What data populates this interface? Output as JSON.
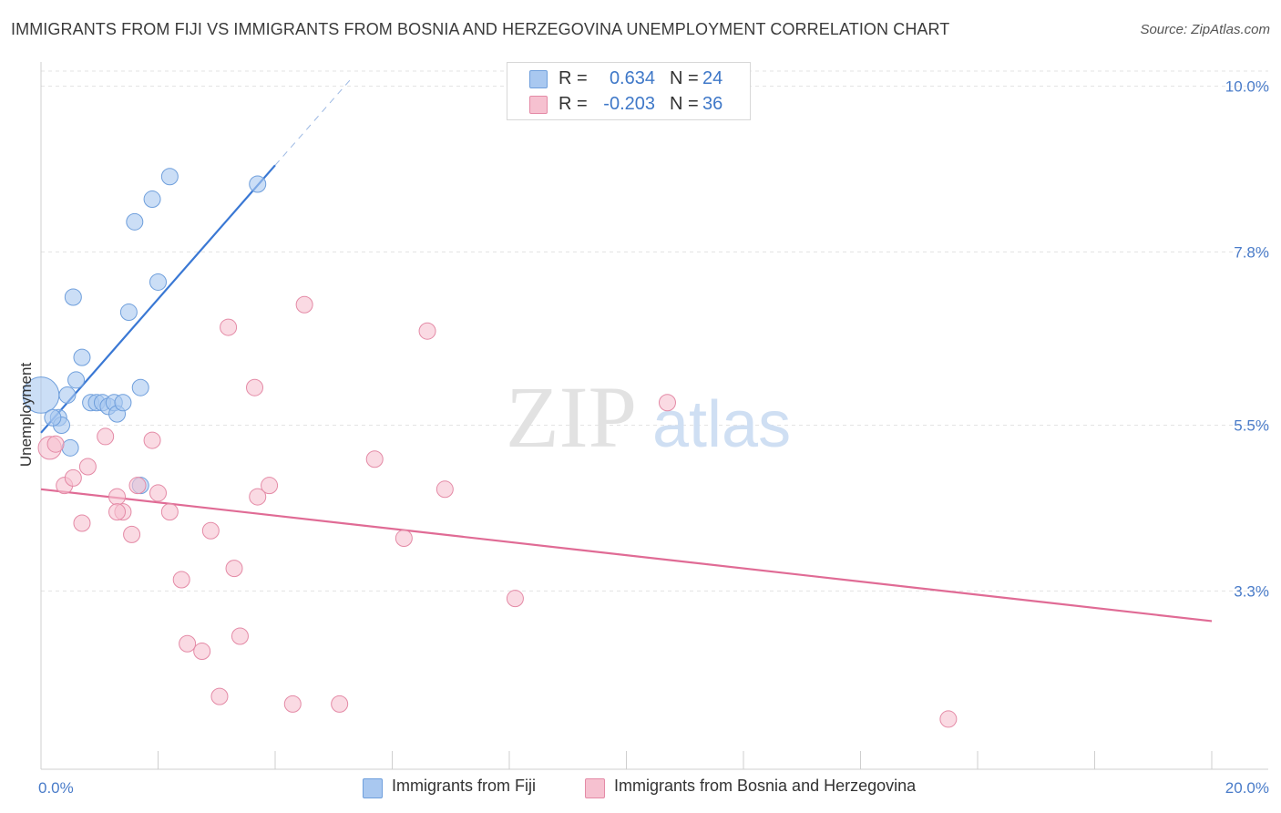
{
  "title": "IMMIGRANTS FROM FIJI VS IMMIGRANTS FROM BOSNIA AND HERZEGOVINA UNEMPLOYMENT CORRELATION CHART",
  "source": "Source: ZipAtlas.com",
  "watermark": {
    "zip": "ZIP",
    "atlas": "atlas"
  },
  "legend": {
    "rows": [
      {
        "r_label": "R =",
        "r_value": "0.634",
        "n_label": "N =",
        "n_value": "24",
        "color": "#a9c8f0",
        "border": "#6f9fdc",
        "value_color": "#3f78c8"
      },
      {
        "r_label": "R =",
        "r_value": "-0.203",
        "n_label": "N =",
        "n_value": "36",
        "color": "#f6c1d0",
        "border": "#e48aa6",
        "value_color": "#3f78c8"
      }
    ]
  },
  "bottom_legend": [
    {
      "label": "Immigrants from Fiji",
      "color": "#a9c8f0",
      "border": "#6f9fdc"
    },
    {
      "label": "Immigrants from Bosnia and Herzegovina",
      "color": "#f6c1d0",
      "border": "#e48aa6"
    }
  ],
  "chart_data": {
    "type": "scatter",
    "title": "IMMIGRANTS FROM FIJI VS IMMIGRANTS FROM BOSNIA AND HERZEGOVINA UNEMPLOYMENT CORRELATION CHART",
    "xlabel": "",
    "ylabel": "Unemployment",
    "xlim": [
      0,
      20
    ],
    "ylim": [
      1.2,
      10.2
    ],
    "x_ticks": [
      {
        "value": 0,
        "label": "0.0%"
      },
      {
        "value": 20,
        "label": "20.0%"
      }
    ],
    "x_minor_ticks": [
      0,
      2,
      4,
      6,
      8,
      10,
      12,
      14,
      16,
      18,
      20
    ],
    "y_ticks": [
      {
        "value": 3.3,
        "label": "3.3%"
      },
      {
        "value": 5.5,
        "label": "5.5%"
      },
      {
        "value": 7.8,
        "label": "7.8%"
      },
      {
        "value": 10.0,
        "label": "10.0%"
      }
    ],
    "grid": true,
    "series": [
      {
        "name": "Immigrants from Fiji",
        "color": "#a9c8f0",
        "stroke": "#6f9fdc",
        "points": [
          [
            0.0,
            5.9,
            2.2
          ],
          [
            0.3,
            5.6,
            1
          ],
          [
            0.35,
            5.5,
            1
          ],
          [
            0.45,
            5.9,
            1
          ],
          [
            0.6,
            6.1,
            1
          ],
          [
            0.7,
            6.4,
            1
          ],
          [
            0.5,
            5.2,
            1
          ],
          [
            0.55,
            7.2,
            1
          ],
          [
            0.85,
            5.8,
            1
          ],
          [
            0.95,
            5.8,
            1
          ],
          [
            1.05,
            5.8,
            1
          ],
          [
            1.15,
            5.75,
            1
          ],
          [
            1.25,
            5.8,
            1
          ],
          [
            1.3,
            5.65,
            1
          ],
          [
            1.4,
            5.8,
            1
          ],
          [
            1.5,
            7.0,
            1
          ],
          [
            1.6,
            8.2,
            1
          ],
          [
            1.7,
            6.0,
            1
          ],
          [
            1.9,
            8.5,
            1
          ],
          [
            2.0,
            7.4,
            1
          ],
          [
            2.2,
            8.8,
            1
          ],
          [
            3.7,
            8.7,
            1
          ],
          [
            1.7,
            4.7,
            1
          ],
          [
            0.2,
            5.6,
            1
          ]
        ],
        "trendline": {
          "x": [
            0.0,
            4.0
          ],
          "y": [
            5.4,
            8.95
          ],
          "extension": {
            "x": [
              4.0,
              5.3
            ],
            "y": [
              8.95,
              10.1
            ]
          }
        }
      },
      {
        "name": "Immigrants from Bosnia and Herzegovina",
        "color": "#f6c1d0",
        "stroke": "#e48aa6",
        "points": [
          [
            0.15,
            5.2,
            1.4
          ],
          [
            0.4,
            4.7,
            1
          ],
          [
            0.55,
            4.8,
            1
          ],
          [
            0.7,
            4.2,
            1
          ],
          [
            0.8,
            4.95,
            1
          ],
          [
            1.1,
            5.35,
            1
          ],
          [
            1.3,
            4.55,
            1
          ],
          [
            1.4,
            4.35,
            1
          ],
          [
            1.55,
            4.05,
            1
          ],
          [
            1.65,
            4.7,
            1
          ],
          [
            1.9,
            5.3,
            1
          ],
          [
            2.0,
            4.6,
            1
          ],
          [
            2.2,
            4.35,
            1
          ],
          [
            2.4,
            3.45,
            1
          ],
          [
            2.5,
            2.6,
            1
          ],
          [
            2.75,
            2.5,
            1
          ],
          [
            2.9,
            4.1,
            1
          ],
          [
            3.05,
            1.9,
            1
          ],
          [
            3.2,
            6.8,
            1
          ],
          [
            3.3,
            3.6,
            1
          ],
          [
            3.4,
            2.7,
            1
          ],
          [
            3.65,
            6.0,
            1
          ],
          [
            3.7,
            4.55,
            1
          ],
          [
            3.9,
            4.7,
            1
          ],
          [
            4.3,
            1.8,
            1
          ],
          [
            4.5,
            7.1,
            1
          ],
          [
            5.1,
            1.8,
            1
          ],
          [
            5.7,
            5.05,
            1
          ],
          [
            6.2,
            4.0,
            1
          ],
          [
            6.6,
            6.75,
            1
          ],
          [
            6.9,
            4.65,
            1
          ],
          [
            8.1,
            3.2,
            1
          ],
          [
            10.7,
            5.8,
            1
          ],
          [
            15.5,
            1.6,
            1
          ],
          [
            0.25,
            5.25,
            1
          ],
          [
            1.3,
            4.35,
            1
          ]
        ],
        "trendline": {
          "x": [
            0.0,
            20.0
          ],
          "y": [
            4.65,
            2.9
          ]
        }
      }
    ]
  }
}
